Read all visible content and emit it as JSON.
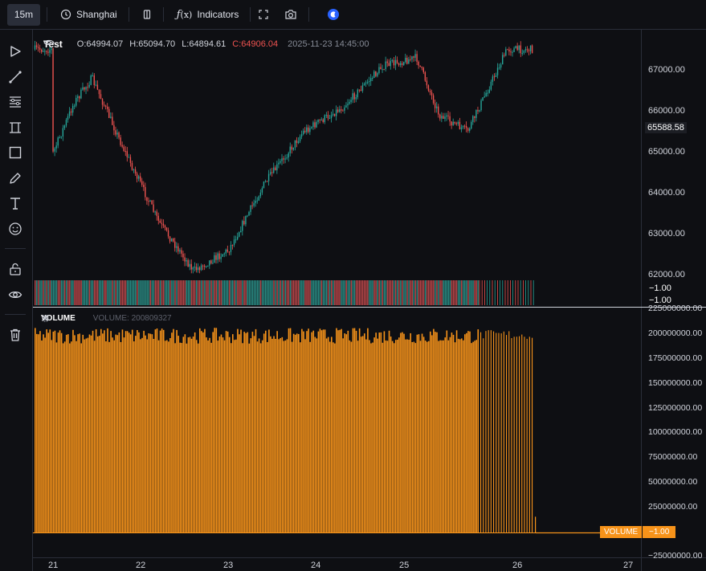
{
  "toolbar": {
    "interval": "15m",
    "timezone": "Shanghai",
    "indicators_label": "Indicators"
  },
  "legend": {
    "symbol": "Test",
    "open": "O:64994.07",
    "high": "H:65094.70",
    "low": "L:64894.61",
    "close": "C:64906.04",
    "time": "2025-11-23 14:45:00"
  },
  "volume_legend": {
    "name": "VOLUME",
    "value_text": "VOLUME: 200809327"
  },
  "price_axis": {
    "labels": [
      "67000.00",
      "66000.00",
      "65000.00",
      "64000.00",
      "63000.00",
      "62000.00"
    ],
    "current_price": "65588.58",
    "pane_markers": [
      "−1.00",
      "−1.00"
    ]
  },
  "volume_axis": {
    "labels": [
      "225000000.00",
      "200000000.00",
      "175000000.00",
      "150000000.00",
      "125000000.00",
      "100000000.00",
      "75000000.00",
      "50000000.00",
      "25000000.00",
      "−25000000.00"
    ],
    "tag_name": "VOLUME",
    "tag_value": "−1.00"
  },
  "time_axis": {
    "labels": [
      "21",
      "22",
      "23",
      "24",
      "25",
      "26",
      "27"
    ]
  },
  "colors": {
    "up": "#26a69a",
    "down": "#ef5350",
    "volume": "#f7931a",
    "accent": "#2962ff"
  },
  "chart_data": {
    "type": "candlestick",
    "symbol": "Test",
    "interval": "15m",
    "ylim": [
      61800,
      67700
    ],
    "path": [
      {
        "x": "21",
        "y": 64900
      },
      {
        "x": "21.25",
        "y": 66200
      },
      {
        "x": "21.45",
        "y": 66800
      },
      {
        "x": "21.8",
        "y": 65100
      },
      {
        "x": "22.2",
        "y": 63300
      },
      {
        "x": "22.6",
        "y": 62100
      },
      {
        "x": "23",
        "y": 62600
      },
      {
        "x": "23.4",
        "y": 64200
      },
      {
        "x": "23.85",
        "y": 65500
      },
      {
        "x": "24.3",
        "y": 66100
      },
      {
        "x": "24.75",
        "y": 67100
      },
      {
        "x": "25.1",
        "y": 67300
      },
      {
        "x": "25.3",
        "y": 65900
      },
      {
        "x": "25.55",
        "y": 65500
      },
      {
        "x": "25.9",
        "y": 67500
      },
      {
        "x": "26.2",
        "y": 67500
      }
    ],
    "volume_level": 200000000,
    "volume_ylim": [
      -25000000,
      225000000
    ],
    "last_close": 65588.58
  }
}
